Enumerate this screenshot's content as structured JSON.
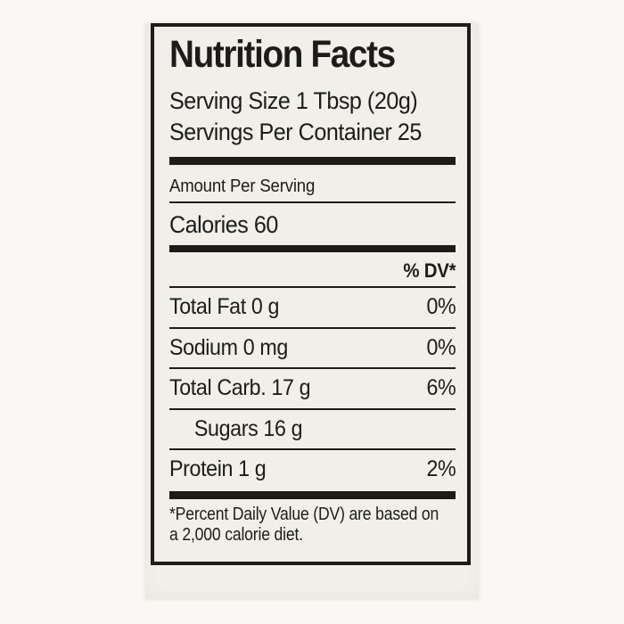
{
  "label": {
    "title": "Nutrition Facts",
    "serving_size": "Serving Size 1 Tbsp (20g)",
    "servings_per_container": "Servings Per Container 25",
    "amount_per_serving": "Amount Per Serving",
    "calories": "Calories 60",
    "dv_header": "% DV*",
    "nutrients": [
      {
        "name": "Total Fat 0 g",
        "dv": "0%"
      },
      {
        "name": "Sodium 0 mg",
        "dv": "0%"
      },
      {
        "name": "Total Carb. 17 g",
        "dv": "6%"
      },
      {
        "name": "Sugars 16 g",
        "dv": ""
      },
      {
        "name": "Protein 1 g",
        "dv": "2%"
      }
    ],
    "footnote": [
      "*Percent Daily Value (DV) are based on",
      "a 2,000 calorie diet."
    ],
    "colors": {
      "ink": "#1d1c1a",
      "paper": "#f0efe9",
      "background": "#f9f8f4"
    }
  }
}
